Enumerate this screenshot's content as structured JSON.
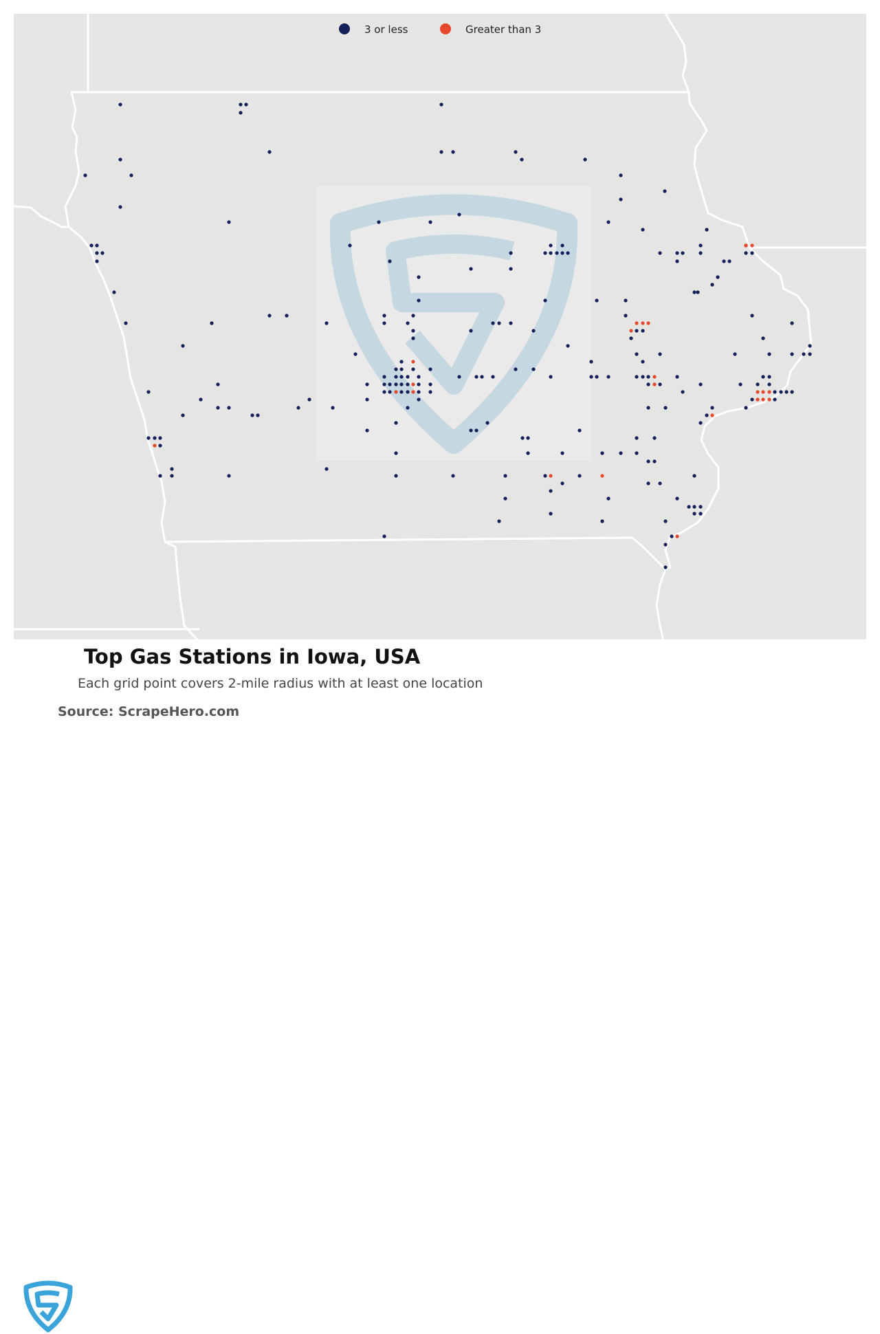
{
  "legend": [
    {
      "label": "3 or less",
      "color": "#14205a"
    },
    {
      "label": "Greater than 3",
      "color": "#e5482a"
    }
  ],
  "footer": {
    "title": "Top Gas Stations in Iowa, USA",
    "subtitle": "Each grid point covers 2-mile radius with at least one location",
    "source": "Source: ScrapeHero.com"
  },
  "colors": {
    "background": "#e5e5e3",
    "border": "#ffffff",
    "low": "#14205a",
    "high": "#e5482a",
    "logo": "#3aa3d9"
  },
  "icons": [
    "scrapehero-shield-icon",
    "scrapehero-watermark-icon"
  ]
}
